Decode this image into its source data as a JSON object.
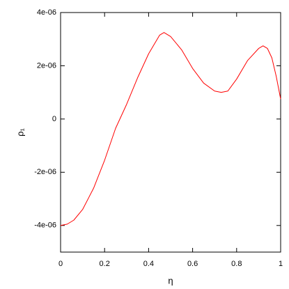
{
  "chart_data": {
    "type": "line",
    "xlabel": "η",
    "ylabel": "ρ₁",
    "x": [
      0,
      0.03,
      0.06,
      0.1,
      0.15,
      0.2,
      0.25,
      0.3,
      0.35,
      0.4,
      0.45,
      0.47,
      0.5,
      0.55,
      0.6,
      0.65,
      0.7,
      0.73,
      0.76,
      0.8,
      0.85,
      0.9,
      0.92,
      0.94,
      0.96,
      0.98,
      1.0
    ],
    "series": [
      {
        "color": "#ff0000",
        "values": [
          -4e-06,
          -3.95e-06,
          -3.8e-06,
          -3.4e-06,
          -2.6e-06,
          -1.55e-06,
          -3.5e-07,
          5.5e-07,
          1.55e-06,
          2.45e-06,
          3.15e-06,
          3.25e-06,
          3.1e-06,
          2.6e-06,
          1.9e-06,
          1.35e-06,
          1.05e-06,
          1e-06,
          1.05e-06,
          1.5e-06,
          2.2e-06,
          2.65e-06,
          2.75e-06,
          2.65e-06,
          2.3e-06,
          1.6e-06,
          7.5e-07
        ]
      }
    ],
    "xlim": [
      0,
      1
    ],
    "xticks": [
      0,
      0.2,
      0.4,
      0.6,
      0.8,
      1
    ],
    "ylim": [
      -5e-06,
      4e-06
    ],
    "yticks": [
      {
        "value": -4e-06,
        "label": "-4e-06"
      },
      {
        "value": -2e-06,
        "label": "-2e-06"
      },
      0,
      {
        "value": 2e-06,
        "label": "2e-06"
      },
      {
        "value": 4e-06,
        "label": "4e-06"
      }
    ]
  }
}
